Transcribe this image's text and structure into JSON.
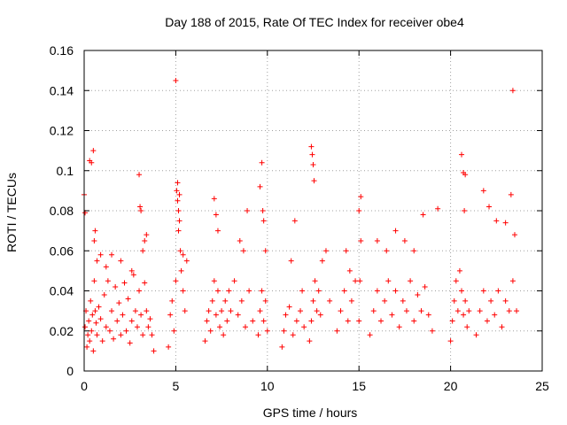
{
  "chart_data": {
    "type": "scatter",
    "title": "Day 188 of 2015, Rate Of TEC Index for receiver obe4",
    "xlabel": "GPS time / hours",
    "ylabel": "ROTI / TECUs",
    "xlim": [
      0,
      25
    ],
    "ylim": [
      0,
      0.16
    ],
    "x_ticks": [
      0,
      5,
      10,
      15,
      20,
      25
    ],
    "x_tick_labels": [
      "0",
      "5",
      "10",
      "15",
      "20",
      "25"
    ],
    "y_ticks": [
      0,
      0.02,
      0.04,
      0.06,
      0.08,
      0.1,
      0.12,
      0.14,
      0.16
    ],
    "y_tick_labels": [
      "0",
      "0.02",
      "0.04",
      "0.06",
      "0.08",
      "0.1",
      "0.12",
      "0.14",
      "0.16"
    ],
    "grid": true,
    "marker": "+",
    "color": "#ff0000",
    "series": [
      {
        "x": [
          0.05,
          0.1,
          0.15,
          0.2,
          0.25,
          0.3,
          0.35,
          0.4,
          0.45,
          0.5,
          0.55,
          0.6,
          0.65,
          0.7,
          0.8,
          0.9,
          1.0,
          1.1,
          1.2,
          1.3,
          1.4,
          1.5,
          1.6,
          1.7,
          1.8,
          1.9,
          2.0,
          2.1,
          2.2,
          2.3,
          2.4,
          2.5,
          2.6,
          2.7,
          2.8,
          2.9,
          3.0,
          3.1,
          3.2,
          3.3,
          3.4,
          3.5,
          3.6,
          3.7,
          3.8,
          0.0,
          0.05,
          0.3,
          0.4,
          0.5,
          0.55,
          0.6,
          0.7,
          0.9,
          1.2,
          1.5,
          2.0,
          2.6,
          3.0,
          3.05,
          3.1,
          3.2,
          3.3,
          3.4,
          4.6,
          4.7,
          4.8,
          4.9,
          5.0,
          5.05,
          5.1,
          5.15,
          5.2,
          5.3,
          5.4,
          5.5,
          5.6,
          5.0,
          5.1,
          5.2,
          5.15,
          5.25,
          5.4,
          6.6,
          6.7,
          6.8,
          6.9,
          7.0,
          7.1,
          7.2,
          7.3,
          7.4,
          7.5,
          7.6,
          7.7,
          7.8,
          7.9,
          8.0,
          8.2,
          8.4,
          8.6,
          8.8,
          9.0,
          9.2,
          7.1,
          7.2,
          7.3,
          8.5,
          8.7,
          8.9,
          9.5,
          9.6,
          9.7,
          9.8,
          9.9,
          10.0,
          9.6,
          9.7,
          9.75,
          9.8,
          9.9,
          10.8,
          10.9,
          11.0,
          11.2,
          11.4,
          11.6,
          11.8,
          12.0,
          11.3,
          11.5,
          11.9,
          12.3,
          12.4,
          12.5,
          12.6,
          12.7,
          12.8,
          12.9,
          13.0,
          13.2,
          13.4,
          12.4,
          12.45,
          12.5,
          12.55,
          13.8,
          14.0,
          14.2,
          14.4,
          14.6,
          14.8,
          14.5,
          14.3,
          15.0,
          15.05,
          15.1,
          15.0,
          15.1,
          15.6,
          15.8,
          16.0,
          16.2,
          16.4,
          16.6,
          16.8,
          17.0,
          17.2,
          17.4,
          17.6,
          17.8,
          18.0,
          18.2,
          18.4,
          18.6,
          18.8,
          19.0,
          16.0,
          16.5,
          17.0,
          17.5,
          18.0,
          18.5,
          19.3,
          20.0,
          20.1,
          20.2,
          20.3,
          20.4,
          20.5,
          20.6,
          20.7,
          20.8,
          20.9,
          21.0,
          20.6,
          20.7,
          20.8,
          20.75,
          21.4,
          21.6,
          21.8,
          22.0,
          22.2,
          22.4,
          22.6,
          22.8,
          23.0,
          23.2,
          23.4,
          23.6,
          21.8,
          22.1,
          22.5,
          23.0,
          23.4,
          23.5,
          23.3
        ],
        "y": [
          0.022,
          0.03,
          0.012,
          0.018,
          0.025,
          0.015,
          0.035,
          0.02,
          0.028,
          0.01,
          0.045,
          0.03,
          0.024,
          0.018,
          0.032,
          0.026,
          0.015,
          0.038,
          0.022,
          0.045,
          0.02,
          0.03,
          0.016,
          0.042,
          0.025,
          0.034,
          0.018,
          0.028,
          0.044,
          0.02,
          0.036,
          0.014,
          0.025,
          0.048,
          0.03,
          0.022,
          0.04,
          0.028,
          0.018,
          0.044,
          0.03,
          0.022,
          0.026,
          0.018,
          0.01,
          0.088,
          0.079,
          0.105,
          0.104,
          0.11,
          0.065,
          0.07,
          0.055,
          0.058,
          0.052,
          0.058,
          0.055,
          0.05,
          0.098,
          0.082,
          0.08,
          0.06,
          0.065,
          0.068,
          0.012,
          0.028,
          0.035,
          0.02,
          0.045,
          0.09,
          0.085,
          0.08,
          0.075,
          0.05,
          0.04,
          0.03,
          0.055,
          0.145,
          0.094,
          0.088,
          0.07,
          0.06,
          0.058,
          0.015,
          0.025,
          0.03,
          0.02,
          0.035,
          0.045,
          0.028,
          0.04,
          0.022,
          0.03,
          0.018,
          0.035,
          0.025,
          0.04,
          0.03,
          0.045,
          0.028,
          0.035,
          0.022,
          0.04,
          0.025,
          0.086,
          0.078,
          0.07,
          0.065,
          0.06,
          0.08,
          0.018,
          0.03,
          0.04,
          0.025,
          0.035,
          0.02,
          0.092,
          0.104,
          0.08,
          0.075,
          0.06,
          0.012,
          0.02,
          0.028,
          0.032,
          0.018,
          0.025,
          0.03,
          0.022,
          0.055,
          0.075,
          0.04,
          0.015,
          0.025,
          0.035,
          0.045,
          0.03,
          0.04,
          0.028,
          0.055,
          0.06,
          0.035,
          0.112,
          0.108,
          0.103,
          0.095,
          0.02,
          0.03,
          0.04,
          0.025,
          0.035,
          0.045,
          0.05,
          0.06,
          0.025,
          0.045,
          0.087,
          0.08,
          0.065,
          0.018,
          0.03,
          0.04,
          0.025,
          0.035,
          0.045,
          0.028,
          0.04,
          0.022,
          0.035,
          0.03,
          0.045,
          0.025,
          0.038,
          0.03,
          0.042,
          0.028,
          0.02,
          0.065,
          0.06,
          0.07,
          0.065,
          0.06,
          0.078,
          0.081,
          0.015,
          0.025,
          0.035,
          0.045,
          0.03,
          0.05,
          0.04,
          0.028,
          0.035,
          0.022,
          0.03,
          0.108,
          0.099,
          0.098,
          0.08,
          0.018,
          0.03,
          0.04,
          0.025,
          0.035,
          0.028,
          0.04,
          0.022,
          0.035,
          0.03,
          0.045,
          0.03,
          0.09,
          0.082,
          0.075,
          0.074,
          0.14,
          0.068,
          0.088
        ]
      }
    ]
  }
}
